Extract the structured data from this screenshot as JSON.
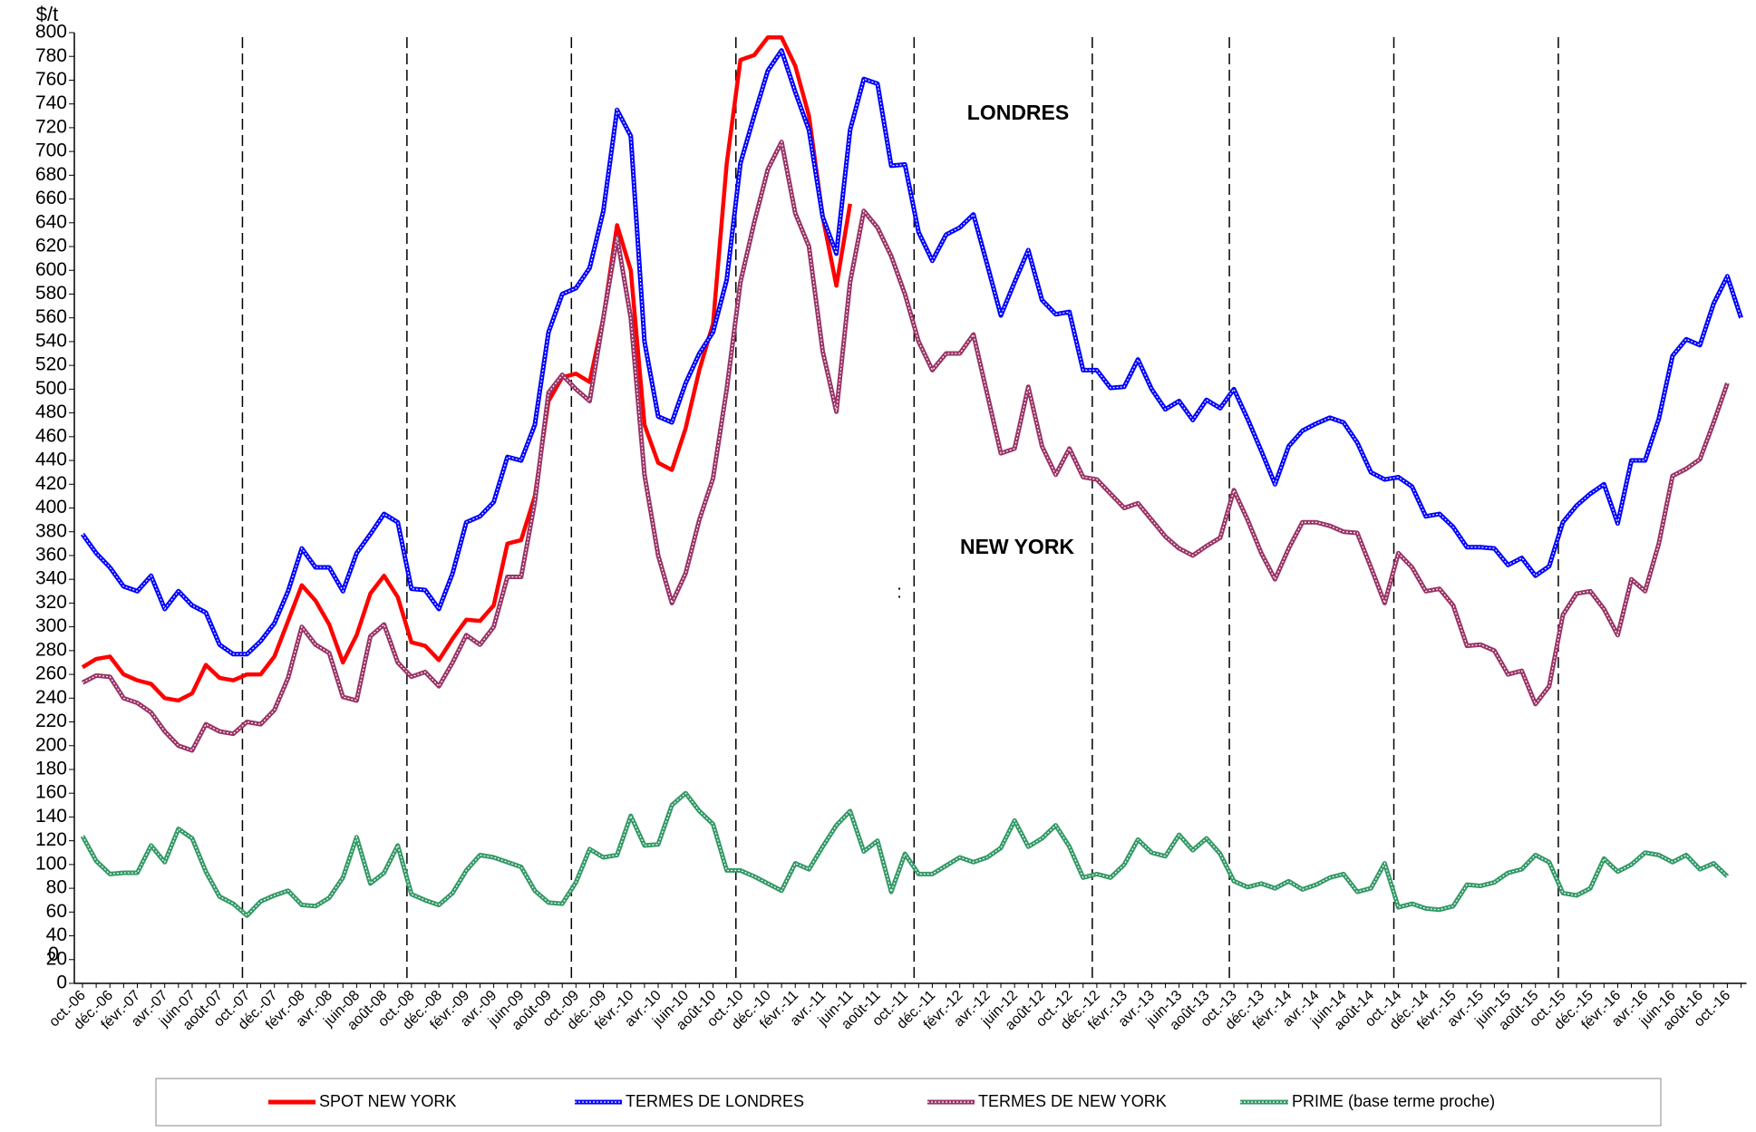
{
  "chart_data": {
    "type": "line",
    "y_axis_label": "$/t",
    "annotations": [
      "LONDRES",
      "NEW YORK",
      ":",
      "0"
    ],
    "ylim": [
      0,
      800
    ],
    "yticks": [
      0,
      20,
      40,
      60,
      80,
      100,
      120,
      140,
      160,
      180,
      200,
      220,
      240,
      260,
      280,
      300,
      320,
      340,
      360,
      380,
      400,
      420,
      440,
      460,
      480,
      500,
      520,
      540,
      560,
      580,
      600,
      620,
      640,
      660,
      680,
      700,
      720,
      740,
      760,
      780,
      800
    ],
    "grid": false,
    "legend": "bottom",
    "categories": [
      "oct.-06",
      null,
      "déc.-06",
      null,
      "févr.-07",
      null,
      "avr.-07",
      null,
      "juin-07",
      null,
      "août-07",
      null,
      "oct.-07",
      null,
      "déc.-07",
      null,
      "févr.-08",
      null,
      "avr.-08",
      null,
      "juin-08",
      null,
      "août-08",
      null,
      "oct.-08",
      null,
      "déc.-08",
      null,
      "févr.-09",
      null,
      "avr.-09",
      null,
      "juin-09",
      null,
      "août-09",
      null,
      "oct.-09",
      null,
      "déc.-09",
      null,
      "févr.-10",
      null,
      "avr.-10",
      null,
      "juin-10",
      null,
      "août-10",
      null,
      "oct.-10",
      null,
      "déc.-10",
      null,
      "févr.-11",
      null,
      "avr.-11",
      null,
      "juin-11",
      null,
      "août-11",
      null,
      "oct.-11",
      null,
      "déc.-11",
      null,
      "févr.-12",
      null,
      "avr.-12",
      null,
      "juin-12",
      null,
      "août-12",
      null,
      "oct.-12",
      null,
      "déc.-12",
      null,
      "févr.-13",
      null,
      "avr.-13",
      null,
      "juin-13",
      null,
      "août-13",
      null,
      "oct.-13",
      null,
      "déc.-13",
      null,
      "févr.-14",
      null,
      "avr.-14",
      null,
      "juin-14",
      null,
      "août-14",
      null,
      "oct.-14",
      null,
      "déc.-14",
      null,
      "févr.-15",
      null,
      "avr.-15",
      null,
      "juin-15",
      null,
      "août-15",
      null,
      "oct.-15",
      null,
      "déc.-15",
      null,
      "févr.-16",
      null,
      "avr.-16",
      null,
      "juin-16",
      null,
      "août-16",
      null,
      "oct.-16",
      null
    ],
    "series": [
      {
        "name": "SPOT NEW YORK",
        "color": "#ff0000",
        "values": [
          266,
          273,
          275,
          260,
          255,
          252,
          240,
          238,
          244,
          268,
          257,
          255,
          260,
          260,
          275,
          305,
          335,
          322,
          302,
          270,
          293,
          328,
          343,
          325,
          287,
          284,
          272,
          290,
          306,
          305,
          318,
          370,
          373,
          410,
          490,
          510,
          513,
          506,
          560,
          638,
          600,
          470,
          438,
          432,
          467,
          516,
          555,
          690,
          777,
          781,
          796,
          796,
          772,
          730,
          645,
          587,
          656,
          null,
          null,
          null,
          null,
          null,
          null,
          null,
          null,
          null,
          null,
          null,
          null,
          null,
          null,
          null,
          null,
          null,
          null,
          null,
          null,
          null,
          null,
          null,
          null,
          null,
          null,
          null,
          null,
          null,
          null,
          null,
          null,
          null,
          null,
          null,
          null,
          null,
          null,
          null,
          null,
          null,
          null,
          null,
          null,
          null,
          null,
          null,
          null,
          null,
          null,
          null,
          null,
          null,
          null,
          null,
          null,
          null,
          null,
          null,
          null,
          null,
          null,
          null,
          null,
          null
        ]
      },
      {
        "name": "TERMES DE LONDRES",
        "color": "#0000ff",
        "values": [
          378,
          362,
          350,
          334,
          330,
          343,
          315,
          330,
          318,
          312,
          285,
          277,
          277,
          288,
          303,
          330,
          366,
          350,
          350,
          330,
          362,
          378,
          395,
          388,
          332,
          331,
          315,
          345,
          388,
          393,
          405,
          443,
          440,
          470,
          548,
          580,
          585,
          602,
          650,
          735,
          713,
          540,
          477,
          472,
          505,
          530,
          548,
          592,
          690,
          730,
          768,
          785,
          750,
          718,
          645,
          614,
          718,
          761,
          757,
          688,
          689,
          632,
          608,
          630,
          636,
          647,
          605,
          562,
          590,
          617,
          575,
          563,
          565,
          516,
          516,
          501,
          502,
          525,
          500,
          483,
          490,
          474,
          491,
          484,
          500,
          475,
          448,
          420,
          452,
          465,
          471,
          476,
          472,
          455,
          430,
          424,
          426,
          418,
          393,
          395,
          384,
          367,
          367,
          366,
          352,
          358,
          343,
          351,
          388,
          402,
          412,
          420,
          387,
          440,
          440,
          475,
          528,
          542,
          537,
          572,
          595,
          560
        ]
      },
      {
        "name": "TERMES DE NEW YORK",
        "color": "#993366",
        "values": [
          253,
          259,
          258,
          240,
          236,
          228,
          212,
          200,
          196,
          218,
          212,
          210,
          220,
          218,
          230,
          257,
          300,
          285,
          278,
          241,
          238,
          292,
          302,
          270,
          258,
          262,
          250,
          270,
          293,
          285,
          300,
          342,
          342,
          405,
          497,
          512,
          500,
          490,
          560,
          628,
          560,
          428,
          360,
          320,
          345,
          390,
          425,
          500,
          590,
          640,
          685,
          708,
          648,
          620,
          532,
          481,
          590,
          650,
          636,
          612,
          580,
          540,
          516,
          530,
          530,
          546,
          496,
          446,
          450,
          502,
          452,
          428,
          450,
          426,
          424,
          412,
          400,
          404,
          390,
          376,
          366,
          360,
          368,
          375,
          415,
          390,
          362,
          340,
          366,
          388,
          388,
          385,
          380,
          379,
          350,
          320,
          362,
          350,
          330,
          332,
          318,
          284,
          285,
          280,
          260,
          263,
          235,
          250,
          310,
          328,
          330,
          315,
          293,
          340,
          330,
          370,
          427,
          433,
          441,
          472,
          505,
          null
        ]
      },
      {
        "name": "PRIME (base terme proche)",
        "color": "#339966",
        "values": [
          124,
          103,
          92,
          93,
          93,
          116,
          102,
          130,
          122,
          94,
          73,
          67,
          57,
          69,
          74,
          78,
          66,
          65,
          72,
          89,
          123,
          84,
          93,
          116,
          75,
          70,
          66,
          76,
          95,
          108,
          106,
          102,
          98,
          78,
          68,
          67,
          85,
          113,
          106,
          108,
          141,
          116,
          117,
          150,
          160,
          145,
          134,
          95,
          95,
          90,
          84,
          78,
          101,
          96,
          115,
          133,
          145,
          111,
          120,
          77,
          109,
          92,
          92,
          99,
          106,
          102,
          106,
          114,
          137,
          115,
          122,
          133,
          115,
          89,
          92,
          89,
          100,
          121,
          110,
          107,
          125,
          112,
          122,
          109,
          86,
          81,
          84,
          80,
          86,
          79,
          83,
          89,
          92,
          77,
          80,
          101,
          64,
          67,
          63,
          62,
          65,
          83,
          82,
          85,
          93,
          96,
          108,
          102,
          76,
          74,
          80,
          105,
          94,
          100,
          110,
          108,
          102,
          108,
          96,
          101,
          90,
          null
        ]
      }
    ]
  }
}
